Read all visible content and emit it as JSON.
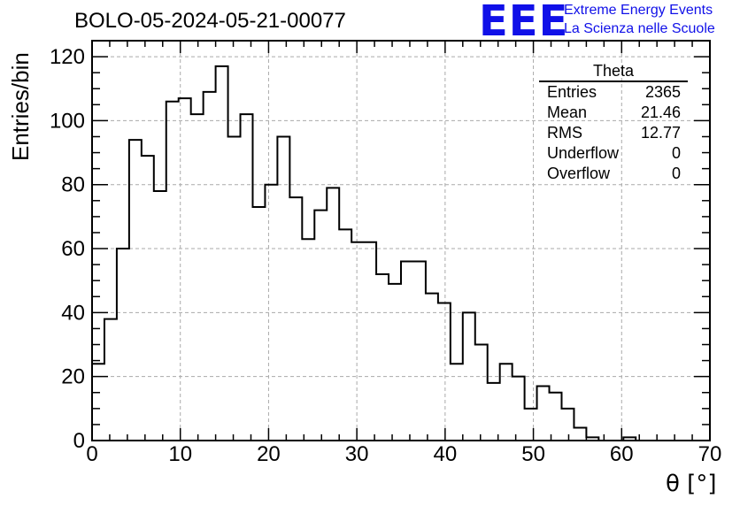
{
  "header": {
    "run_title": "BOLO-05-2024-05-21-00077",
    "logo_mark": "EEE",
    "logo_line1": "Extreme Energy Events",
    "logo_line2": "La Scienza nelle Scuole"
  },
  "stats": {
    "title": "Theta",
    "rows": [
      {
        "label": "Entries",
        "value": "2365"
      },
      {
        "label": "Mean",
        "value": "21.46"
      },
      {
        "label": "RMS",
        "value": "12.77"
      },
      {
        "label": "Underflow",
        "value": "0"
      },
      {
        "label": "Overflow",
        "value": "0"
      }
    ]
  },
  "colors": {
    "line": "#000000",
    "grid": "#aaaaaa",
    "logo": "#1010e8"
  },
  "chart_data": {
    "type": "histogram",
    "xlabel": "θ [°]",
    "ylabel": "Entries/bin",
    "xlim": [
      0,
      70
    ],
    "ylim": [
      0,
      125
    ],
    "grid": true,
    "bin_width": 1.4,
    "x_ticks": [
      0,
      10,
      20,
      30,
      40,
      50,
      60,
      70
    ],
    "y_ticks": [
      0,
      20,
      40,
      60,
      80,
      100,
      120
    ],
    "values": [
      24,
      38,
      60,
      94,
      89,
      78,
      106,
      107,
      102,
      109,
      117,
      95,
      102,
      73,
      80,
      95,
      76,
      63,
      72,
      79,
      66,
      62,
      62,
      52,
      49,
      56,
      56,
      46,
      43,
      24,
      40,
      30,
      18,
      24,
      20,
      10,
      17,
      15,
      10,
      4,
      1,
      0,
      0,
      1,
      0,
      0,
      0,
      0,
      0,
      0
    ]
  }
}
